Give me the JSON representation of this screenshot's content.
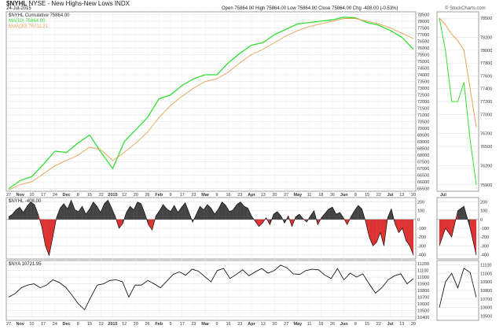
{
  "header": {
    "symbol": "$NYHL",
    "title_rest": " NYSE - New Highs-New Lows  INDX",
    "date": "24-Jul-2015",
    "quote": "Open 75864.00  High 75864.00  Low 75864.00  Close 75864.00  Chg -408.00 (-0.53%)",
    "credit": "© StockCharts.com"
  },
  "panels": {
    "main_legend": [
      {
        "text": "$NYHL Cumulative 75864.00",
        "color": "#333333"
      },
      {
        "text": "MA(10) 75864.00",
        "color": "#33dd33"
      },
      {
        "text": "EMA(30) 76711.21",
        "color": "#e8a050"
      }
    ],
    "middle_label": "$NYHL -408.00",
    "bottom_label": "$NYA 10721.95"
  },
  "colors": {
    "ma10": "#33dd33",
    "ema30": "#e8a050",
    "positive_fill": "#444444",
    "negative_fill": "#dd3333",
    "line": "#000000",
    "grid": "#dddddd"
  },
  "chart_data": [
    {
      "type": "line",
      "title": "$NYHL Cumulative",
      "x_labels": [
        "27",
        "Nov",
        "10",
        "17",
        "24",
        "Dec",
        "8",
        "15",
        "22",
        "2015",
        "12",
        "20",
        "26",
        "Feb",
        "9",
        "17",
        "23",
        "Mar",
        "9",
        "16",
        "23",
        "Apr",
        "13",
        "20",
        "27",
        "May",
        "11",
        "18",
        "26",
        "Jun",
        "8",
        "15",
        "22",
        "Jul",
        "13",
        "20"
      ],
      "y_ticks": [
        65500,
        66000,
        66500,
        67000,
        67500,
        68000,
        68500,
        69000,
        69500,
        70000,
        70500,
        71000,
        71500,
        72000,
        72500,
        73000,
        73500,
        74000,
        74500,
        75000,
        75500,
        76000,
        76500,
        77000,
        77500,
        78000,
        78500
      ],
      "ylim": [
        65300,
        78700
      ],
      "series": [
        {
          "name": "MA(10)",
          "values": [
            65500,
            66100,
            66400,
            67300,
            68300,
            68200,
            68900,
            69500,
            68200,
            67000,
            69000,
            69900,
            70800,
            72200,
            72500,
            73200,
            73700,
            74000,
            74000,
            74900,
            75600,
            76200,
            76400,
            77000,
            77400,
            77800,
            77900,
            78000,
            78100,
            78300,
            78250,
            77900,
            77700,
            77300,
            76800,
            75900
          ]
        },
        {
          "name": "EMA(30)",
          "values": [
            65400,
            65800,
            66000,
            66600,
            67200,
            67600,
            68000,
            68600,
            68400,
            67600,
            68200,
            68900,
            69700,
            70800,
            71700,
            72400,
            73000,
            73500,
            73700,
            74200,
            74900,
            75500,
            75900,
            76400,
            76900,
            77300,
            77600,
            77800,
            78000,
            78200,
            78200,
            78000,
            77800,
            77500,
            77100,
            76700
          ]
        }
      ],
      "right_panel": {
        "x_labels": [
          "Jul"
        ],
        "y_ticks": [
          75900,
          76200,
          76500,
          76700,
          77000,
          77200,
          77400,
          77600,
          77800,
          78000,
          78200,
          78500
        ],
        "ylim": [
          75800,
          78600
        ],
        "series": [
          {
            "name": "MA(10)",
            "values": [
              78500,
              78000,
              77200,
              77200,
              77500,
              76600,
              75900
            ]
          },
          {
            "name": "EMA(30)",
            "values": [
              78500,
              78400,
              78250,
              78150,
              78000,
              77400,
              76800
            ]
          }
        ]
      }
    },
    {
      "type": "area",
      "title": "$NYHL",
      "y_ticks": [
        -400,
        -300,
        -200,
        -100,
        0,
        100,
        200
      ],
      "ylim": [
        -450,
        250
      ],
      "values": [
        30,
        60,
        110,
        140,
        80,
        150,
        200,
        170,
        60,
        -80,
        -300,
        -410,
        -200,
        20,
        130,
        180,
        120,
        220,
        110,
        90,
        150,
        60,
        120,
        200,
        150,
        80,
        180,
        220,
        130,
        30,
        -100,
        -50,
        80,
        150,
        110,
        200,
        180,
        70,
        -60,
        -120,
        40,
        100,
        170,
        120,
        90,
        160,
        80,
        140,
        190,
        80,
        -30,
        60,
        150,
        110,
        170,
        130,
        60,
        120,
        200,
        160,
        90,
        110,
        170,
        200,
        150,
        130,
        40,
        -20,
        -80,
        -40,
        20,
        -60,
        60,
        90,
        40,
        -40,
        40,
        -80,
        30,
        60,
        10,
        -30,
        40,
        100,
        -60,
        20,
        70,
        120,
        140,
        60,
        80,
        20,
        -60,
        30,
        100,
        160,
        120,
        -20,
        -200,
        -300,
        -260,
        -150,
        -300,
        20,
        120,
        -50,
        -150,
        -100,
        -240,
        -300,
        -408
      ],
      "right_panel": {
        "y_ticks": [
          -400,
          -300,
          -200,
          -100,
          0,
          100,
          200
        ],
        "ylim": [
          -450,
          250
        ],
        "values": [
          -300,
          -100,
          -200,
          100,
          150,
          -100,
          -408
        ]
      }
    },
    {
      "type": "line",
      "title": "$NYA",
      "y_ticks": [
        10400,
        10500,
        10600,
        10700,
        10800,
        10900,
        11000,
        11100,
        11200
      ],
      "ylim": [
        10350,
        11250
      ],
      "values": [
        10700,
        10750,
        10840,
        10880,
        10900,
        10840,
        10880,
        10960,
        10920,
        10850,
        10730,
        10600,
        10510,
        10700,
        10880,
        10900,
        10950,
        10960,
        10930,
        10700,
        10880,
        10880,
        10950,
        10900,
        10840,
        10940,
        11040,
        11080,
        11030,
        11120,
        11090,
        11010,
        10930,
        11100,
        11130,
        10980,
        11040,
        11110,
        11020,
        11080,
        11130,
        11060,
        11100,
        11180,
        11140,
        11050,
        11040,
        11100,
        11120,
        11110,
        11030,
        10980,
        11130,
        10960,
        11060,
        11000,
        11050,
        10900,
        10760,
        10840,
        10960,
        11020,
        11050,
        10900,
        10980
      ],
      "right_panel": {
        "y_ticks": [
          10500,
          10600,
          10700,
          10800,
          10900,
          11000,
          11100
        ],
        "ylim": [
          10450,
          11150
        ],
        "values": [
          10600,
          10900,
          11000,
          10830,
          11060,
          11010,
          10720
        ]
      }
    }
  ]
}
